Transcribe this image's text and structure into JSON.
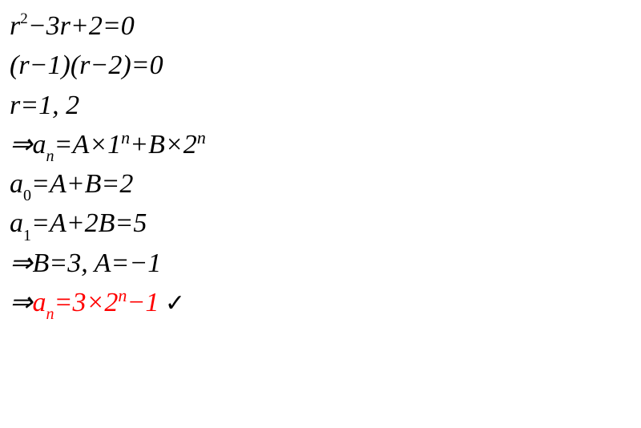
{
  "lines": {
    "l1": {
      "p1": "r",
      "p2": "2",
      "p3": "−3r+2=0"
    },
    "l2": {
      "p1": "(r−1)(r−2)=0"
    },
    "l3": {
      "p1": "r=1, 2"
    },
    "l4": {
      "p1": "⇒a",
      "p2": "n",
      "p3": "=A×1",
      "p4": "n",
      "p5": "+B×2",
      "p6": "n"
    },
    "l5": {
      "p1": "a",
      "p2": "0",
      "p3": "=A+B=2"
    },
    "l6": {
      "p1": "a",
      "p2": "1",
      "p3": "=A+2B=5"
    },
    "l7": {
      "p1": "⇒B=3, A=−1"
    },
    "l8": {
      "p1": "⇒",
      "p2": "a",
      "p3": "n",
      "p4": "=3×2",
      "p5": "n",
      "p6": "−1",
      "p7": " ✓"
    }
  },
  "style": {
    "text_color": "#000000",
    "accent_color": "#ff0000",
    "background_color": "#ffffff",
    "base_fontsize": 34,
    "sub_fontsize": 20,
    "sup_fontsize": 19,
    "font_family": "Times New Roman, serif",
    "font_style": "italic"
  }
}
